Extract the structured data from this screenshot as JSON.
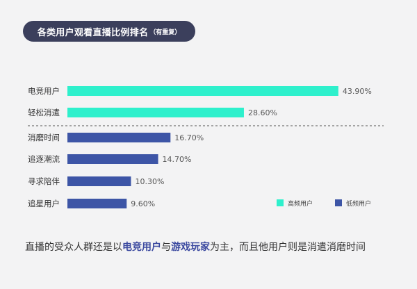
{
  "header": {
    "title": "各类用户观看直播比例排名",
    "subtitle": "（有重复）"
  },
  "chart_data": {
    "type": "bar",
    "orientation": "horizontal",
    "unit": "%",
    "xlim": [
      0,
      50
    ],
    "grid": false,
    "legend_position": "bottom-right",
    "categories": [
      "电竞用户",
      "轻松消遣",
      "消磨时间",
      "追逐潮流",
      "寻求陪伴",
      "追星用户"
    ],
    "values": [
      43.9,
      28.6,
      16.7,
      14.7,
      10.3,
      9.6
    ],
    "value_labels": [
      "43.90%",
      "28.60%",
      "16.70%",
      "14.70%",
      "10.30%",
      "9.60%"
    ],
    "groups": [
      "high",
      "high",
      "low",
      "low",
      "low",
      "low"
    ],
    "series": [
      {
        "name": "高频用户",
        "key": "high",
        "color": "#2ef0cc"
      },
      {
        "name": "低频用户",
        "key": "low",
        "color": "#3d55a6"
      }
    ]
  },
  "caption": {
    "part1": "直播的受众人群还是以",
    "highlight1": "电竞用户",
    "part2": "与",
    "highlight2": "游戏玩家",
    "part3": "为主，而且他用户则是消遣消磨时间"
  }
}
